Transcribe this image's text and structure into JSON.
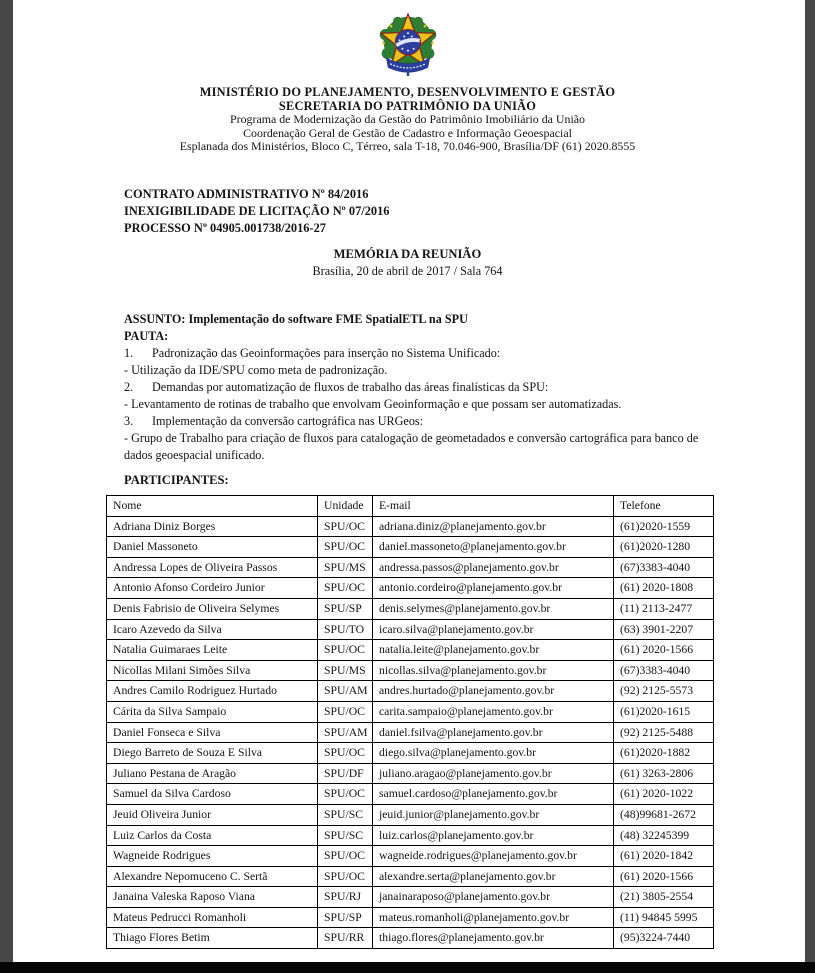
{
  "viewer": {
    "edge_color": "#474747",
    "bottom_bar_color": "#060606",
    "page_color": "#ffffff"
  },
  "header": {
    "emblem": "brazil-coat-of-arms",
    "emblem_colors": {
      "wreath_green": "#2e7d33",
      "star_yellow": "#e8c41a",
      "disc_blue": "#2c3f9e",
      "outline_red": "#8a1a1a"
    },
    "lines": {
      "ministry": "MINISTÉRIO DO PLANEJAMENTO, DESENVOLVIMENTO E GESTÃO",
      "secretariat": "SECRETARIA DO PATRIMÔNIO DA UNIÃO",
      "program": "Programa de Modernização da Gestão do Patrimônio Imobiliário da União",
      "coordination": "Coordenação Geral de Gestão de Cadastro e Informação Geoespacial",
      "address": "Esplanada dos Ministérios, Bloco C, Térreo, sala T-18, 70.046-900, Brasília/DF (61) 2020.8555"
    }
  },
  "contract": {
    "line1": "CONTRATO ADMINISTRATIVO Nº 84/2016",
    "line2": "INEXIGIBILIDADE DE LICITAÇÃO Nº 07/2016",
    "line3": "PROCESSO Nº 04905.001738/2016-27"
  },
  "meeting": {
    "title": "MEMÓRIA DA REUNIÃO",
    "subtitle": "Brasília, 20 de abril de 2017 / Sala 764"
  },
  "subject": "ASSUNTO: Implementação do software FME SpatialETL na SPU",
  "agenda": {
    "label": "PAUTA:",
    "items": [
      {
        "num": "1.",
        "text": "Padronização das Geoinformações para inserção no Sistema Unificado:"
      },
      {
        "num": "",
        "text": "- Utilização da IDE/SPU como meta de padronização."
      },
      {
        "num": "2.",
        "text": "Demandas por automatização de fluxos de trabalho das áreas finalísticas da SPU:"
      },
      {
        "num": "",
        "text": "- Levantamento de rotinas de trabalho que envolvam Geoinformação e que possam ser automatizadas."
      },
      {
        "num": "3.",
        "text": "Implementação da conversão cartográfica nas URGeos:"
      },
      {
        "num": "",
        "text": "- Grupo de Trabalho para criação de fluxos para catalogação de geometadados e conversão cartográfica para banco de dados geoespacial unificado."
      }
    ]
  },
  "participants": {
    "label": "PARTICIPANTES:",
    "table": {
      "headers": [
        "Nome",
        "Unidade",
        "E-mail",
        "Telefone"
      ],
      "column_keys": [
        "nome",
        "unidade",
        "email",
        "telefone"
      ],
      "rows": [
        [
          "Adriana Diniz Borges",
          "SPU/OC",
          "adriana.diniz@planejamento.gov.br",
          "(61)2020-1559"
        ],
        [
          "Daniel Massoneto",
          "SPU/OC",
          "daniel.massoneto@planejamento.gov.br",
          "(61)2020-1280"
        ],
        [
          "Andressa Lopes de Oliveira Passos",
          "SPU/MS",
          "andressa.passos@planejamento.gov.br",
          "(67)3383-4040"
        ],
        [
          "Antonio Afonso Cordeiro Junior",
          "SPU/OC",
          "antonio.cordeiro@planejamento.gov.br",
          "(61) 2020-1808"
        ],
        [
          "Denis Fabrisio de Oliveira Selymes",
          "SPU/SP",
          "denis.selymes@planejamento.gov.br",
          "(11) 2113-2477"
        ],
        [
          "Icaro Azevedo da Silva",
          "SPU/TO",
          "icaro.silva@planejamento.gov.br",
          "(63) 3901-2207"
        ],
        [
          "Natalia Guimaraes Leite",
          "SPU/OC",
          "natalia.leite@planejamento.gov.br",
          "(61) 2020-1566"
        ],
        [
          "Nicollas Milani Simões Silva",
          "SPU/MS",
          "nicollas.silva@planejamento.gov.br",
          "(67)3383-4040"
        ],
        [
          "Andres Camilo Rodriguez Hurtado",
          "SPU/AM",
          "andres.hurtado@planejamento.gov.br",
          "(92) 2125-5573"
        ],
        [
          "Cárita da Silva Sampaio",
          "SPU/OC",
          "carita.sampaio@planejamento.gov.br",
          "(61)2020-1615"
        ],
        [
          "Daniel Fonseca e Silva",
          "SPU/AM",
          "daniel.fsilva@planejamento.gov.br",
          "(92) 2125-5488"
        ],
        [
          "Diego Barreto de Souza E Silva",
          "SPU/OC",
          "diego.silva@planejamento.gov.br",
          "(61)2020-1882"
        ],
        [
          "Juliano Pestana de Aragão",
          "SPU/DF",
          "juliano.aragao@planejamento.gov.br",
          "(61) 3263-2806"
        ],
        [
          "Samuel da Silva Cardoso",
          "SPU/OC",
          "samuel.cardoso@planejamento.gov.br",
          "(61) 2020-1022"
        ],
        [
          "Jeuid Oliveira Junior",
          "SPU/SC",
          "jeuid.junior@planejamento.gov.br",
          "(48)99681-2672"
        ],
        [
          "Luiz Carlos da Costa",
          "SPU/SC",
          "luiz.carlos@planejamento.gov.br",
          "(48) 32245399"
        ],
        [
          "Wagneide Rodrigues",
          "SPU/OC",
          "wagneide.rodrigues@planejamento.gov.br",
          "(61) 2020-1842"
        ],
        [
          "Alexandre Nepomuceno C. Sertã",
          "SPU/OC",
          "alexandre.serta@planejamento.gov.br",
          "(61) 2020-1566"
        ],
        [
          "Janaina Valeska Raposo Viana",
          "SPU/RJ",
          "janainaraposo@planejamento.gov.br",
          "(21) 3805-2554"
        ],
        [
          "Mateus Pedrucci Romanholi",
          "SPU/SP",
          "mateus.romanholi@planejamento.gov.br",
          "(11) 94845 5995"
        ],
        [
          "Thiago Flores Betim",
          "SPU/RR",
          "thiago.flores@planejamento.gov.br",
          "(95)3224-7440"
        ]
      ]
    }
  }
}
